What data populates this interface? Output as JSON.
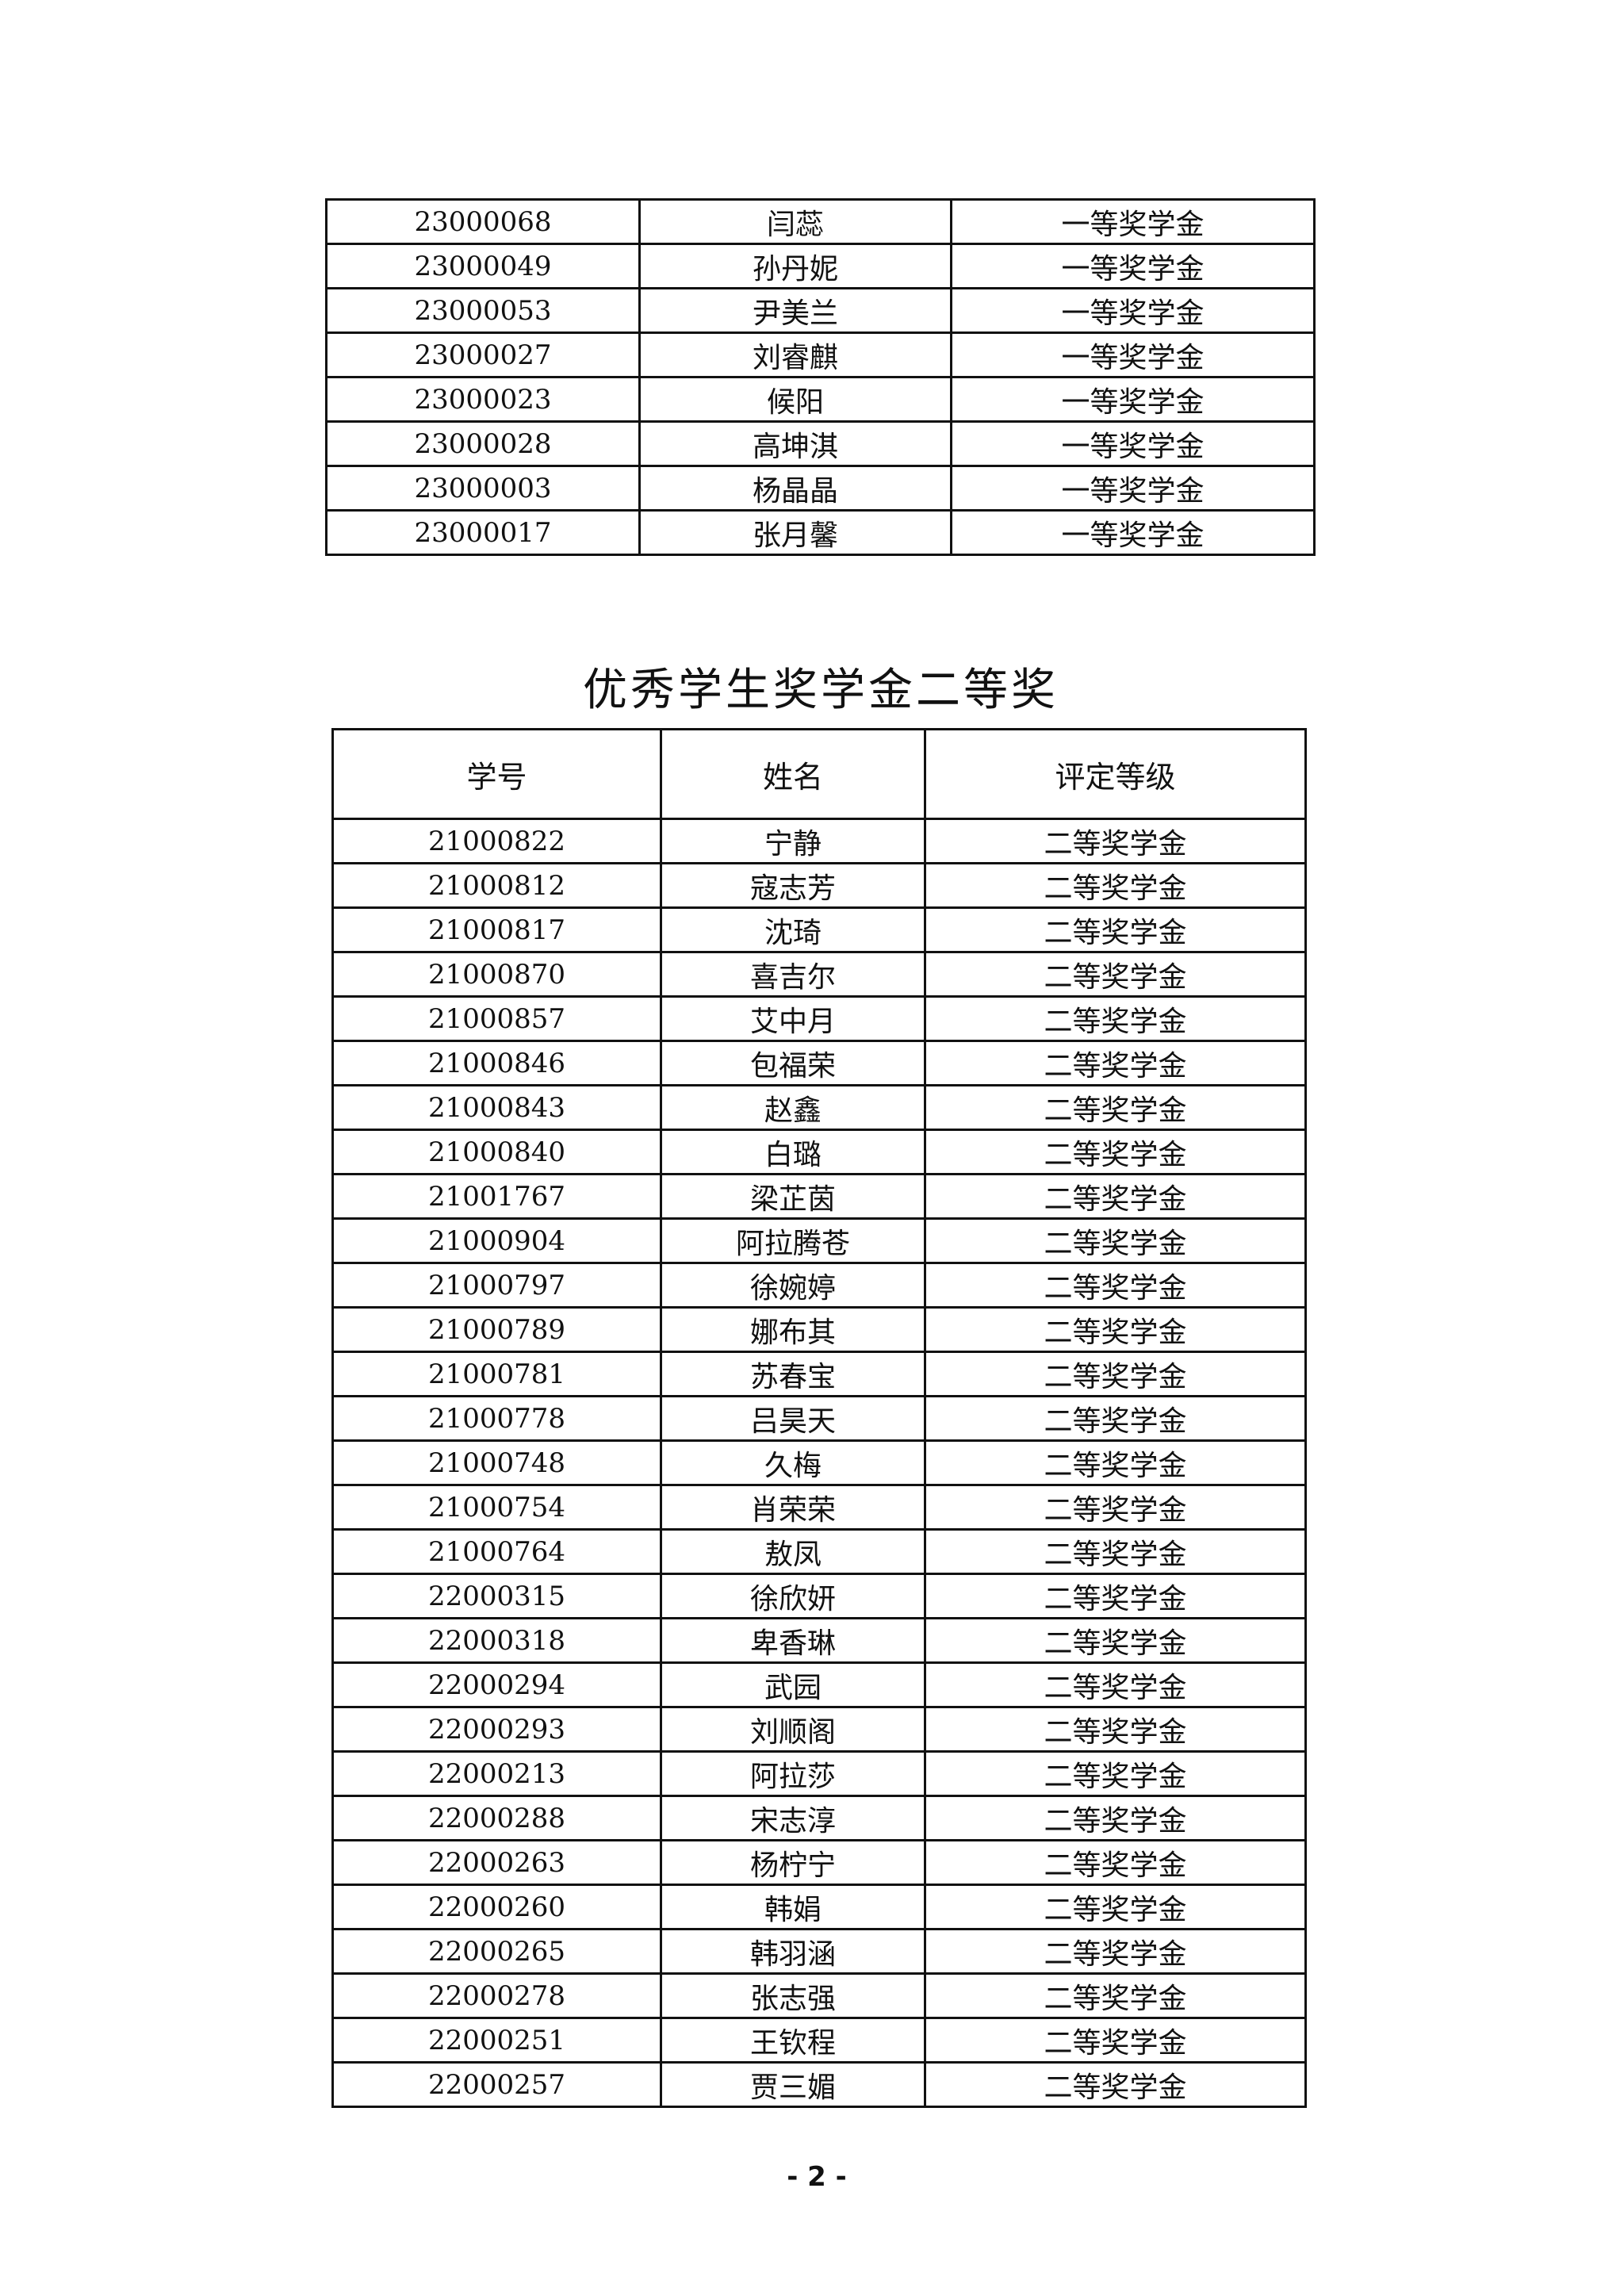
{
  "table1": {
    "rows": [
      [
        "23000068",
        "闫蕊",
        "一等奖学金"
      ],
      [
        "23000049",
        "孙丹妮",
        "一等奖学金"
      ],
      [
        "23000053",
        "尹美兰",
        "一等奖学金"
      ],
      [
        "23000027",
        "刘睿麒",
        "一等奖学金"
      ],
      [
        "23000023",
        "候阳",
        "一等奖学金"
      ],
      [
        "23000028",
        "高坤淇",
        "一等奖学金"
      ],
      [
        "23000003",
        "杨晶晶",
        "一等奖学金"
      ],
      [
        "23000017",
        "张月馨",
        "一等奖学金"
      ]
    ]
  },
  "section_title": "优秀学生奖学金二等奖",
  "table2": {
    "headers": [
      "学号",
      "姓名",
      "评定等级"
    ],
    "rows": [
      [
        "21000822",
        "宁静",
        "二等奖学金"
      ],
      [
        "21000812",
        "寇志芳",
        "二等奖学金"
      ],
      [
        "21000817",
        "沈琦",
        "二等奖学金"
      ],
      [
        "21000870",
        "喜吉尔",
        "二等奖学金"
      ],
      [
        "21000857",
        "艾中月",
        "二等奖学金"
      ],
      [
        "21000846",
        "包福荣",
        "二等奖学金"
      ],
      [
        "21000843",
        "赵鑫",
        "二等奖学金"
      ],
      [
        "21000840",
        "白璐",
        "二等奖学金"
      ],
      [
        "21001767",
        "梁芷茵",
        "二等奖学金"
      ],
      [
        "21000904",
        "阿拉腾苍",
        "二等奖学金"
      ],
      [
        "21000797",
        "徐婉婷",
        "二等奖学金"
      ],
      [
        "21000789",
        "娜布其",
        "二等奖学金"
      ],
      [
        "21000781",
        "苏春宝",
        "二等奖学金"
      ],
      [
        "21000778",
        "吕昊天",
        "二等奖学金"
      ],
      [
        "21000748",
        "久梅",
        "二等奖学金"
      ],
      [
        "21000754",
        "肖荣荣",
        "二等奖学金"
      ],
      [
        "21000764",
        "敖凤",
        "二等奖学金"
      ],
      [
        "22000315",
        "徐欣妍",
        "二等奖学金"
      ],
      [
        "22000318",
        "卑香琳",
        "二等奖学金"
      ],
      [
        "22000294",
        "武园",
        "二等奖学金"
      ],
      [
        "22000293",
        "刘顺阁",
        "二等奖学金"
      ],
      [
        "22000213",
        "阿拉莎",
        "二等奖学金"
      ],
      [
        "22000288",
        "宋志淳",
        "二等奖学金"
      ],
      [
        "22000263",
        "杨柠宁",
        "二等奖学金"
      ],
      [
        "22000260",
        "韩娟",
        "二等奖学金"
      ],
      [
        "22000265",
        "韩羽涵",
        "二等奖学金"
      ],
      [
        "22000278",
        "张志强",
        "二等奖学金"
      ],
      [
        "22000251",
        "王钦程",
        "二等奖学金"
      ],
      [
        "22000257",
        "贾三媚",
        "二等奖学金"
      ]
    ]
  },
  "page_number": "- 2 -"
}
